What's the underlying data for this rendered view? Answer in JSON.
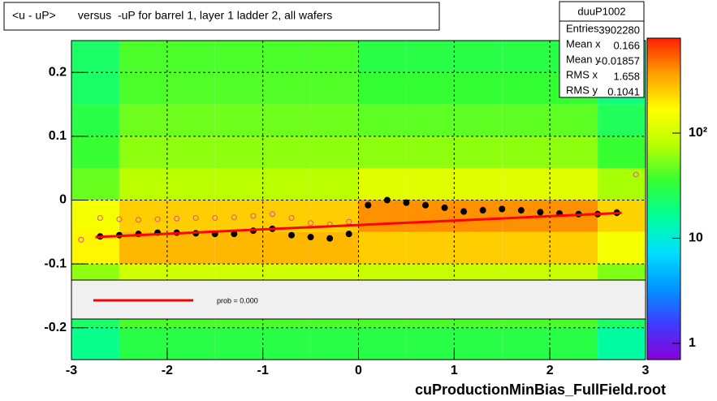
{
  "chart_data": {
    "type": "heatmap",
    "title": "<u - uP>       versus  -uP for barrel 1, layer 1 ladder 2, all wafers",
    "footer": "cuProductionMinBias_FullField.root",
    "xlim": [
      -3,
      3
    ],
    "xticks": [
      -3,
      -2,
      -1,
      0,
      1,
      2,
      3
    ],
    "ylim": [
      -0.25,
      0.25
    ],
    "yticks": [
      -0.2,
      -0.1,
      0,
      0.1,
      0.2
    ],
    "grid": true,
    "xbins": [
      -3,
      -2.5,
      -2,
      -1.5,
      -1,
      -0.5,
      0,
      0.5,
      1,
      1.5,
      2,
      2.5,
      3
    ],
    "ybins": [
      0.25,
      0.2,
      0.15,
      0.1,
      0.05,
      0,
      -0.05,
      -0.1,
      -0.15,
      -0.2,
      -0.25
    ],
    "z": [
      [
        24,
        40,
        40,
        40,
        40,
        40,
        30,
        30,
        30,
        30,
        30,
        18
      ],
      [
        24,
        40,
        42,
        42,
        42,
        42,
        35,
        35,
        35,
        35,
        35,
        20
      ],
      [
        30,
        50,
        50,
        50,
        50,
        50,
        45,
        45,
        45,
        45,
        45,
        26
      ],
      [
        36,
        60,
        60,
        60,
        60,
        60,
        60,
        60,
        60,
        60,
        60,
        36
      ],
      [
        48,
        80,
        80,
        80,
        80,
        80,
        120,
        120,
        120,
        120,
        120,
        70
      ],
      [
        150,
        250,
        250,
        250,
        250,
        250,
        400,
        400,
        400,
        400,
        400,
        240
      ],
      [
        180,
        300,
        300,
        300,
        300,
        300,
        250,
        250,
        250,
        250,
        250,
        150
      ],
      [
        60,
        100,
        100,
        100,
        100,
        100,
        90,
        90,
        90,
        90,
        90,
        55
      ],
      [
        24,
        40,
        40,
        40,
        40,
        40,
        40,
        40,
        40,
        40,
        40,
        24
      ],
      [
        18,
        30,
        30,
        30,
        30,
        30,
        30,
        30,
        30,
        30,
        30,
        15
      ]
    ],
    "zscale": "log",
    "zlim": [
      0.7,
      800
    ],
    "zticks": [
      1,
      10,
      {
        "value": 100,
        "label": "10²"
      }
    ],
    "palette": [
      "#8a00d8",
      "#3c3cff",
      "#0096ff",
      "#00e0ff",
      "#00ff9a",
      "#33ff33",
      "#b8ff00",
      "#ffff00",
      "#ffa000",
      "#ff2000"
    ],
    "series": [
      {
        "kind": "open",
        "color": "#e0508a",
        "x": [
          -2.9,
          -2.7,
          -2.5,
          -2.3,
          -2.1,
          -1.9,
          -1.7,
          -1.5,
          -1.3,
          -1.1,
          -0.9,
          -0.7,
          -0.5,
          -0.3,
          -0.1,
          0.1,
          0.3,
          0.5,
          0.7,
          0.9,
          1.1,
          1.3,
          1.5,
          1.7,
          1.9,
          2.1,
          2.3,
          2.5,
          2.7,
          2.9
        ],
        "values": [
          -0.062,
          -0.028,
          -0.03,
          -0.031,
          -0.03,
          -0.029,
          -0.028,
          -0.028,
          -0.027,
          -0.025,
          -0.022,
          -0.028,
          -0.036,
          -0.038,
          -0.034,
          -0.005,
          0.0,
          -0.005,
          -0.008,
          -0.012,
          -0.016,
          -0.014,
          -0.013,
          -0.015,
          -0.018,
          -0.02,
          -0.021,
          -0.021,
          -0.018,
          0.04
        ]
      },
      {
        "kind": "points",
        "color": "#000000",
        "x": [
          -2.7,
          -2.5,
          -2.3,
          -2.1,
          -1.9,
          -1.7,
          -1.5,
          -1.3,
          -1.1,
          -0.9,
          -0.7,
          -0.5,
          -0.3,
          -0.1,
          0.1,
          0.3,
          0.5,
          0.7,
          0.9,
          1.1,
          1.3,
          1.5,
          1.7,
          1.9,
          2.1,
          2.3,
          2.5,
          2.7
        ],
        "values": [
          -0.057,
          -0.055,
          -0.053,
          -0.051,
          -0.051,
          -0.052,
          -0.053,
          -0.053,
          -0.048,
          -0.045,
          -0.055,
          -0.058,
          -0.06,
          -0.053,
          -0.008,
          0.0,
          -0.004,
          -0.008,
          -0.012,
          -0.018,
          -0.016,
          -0.014,
          -0.016,
          -0.019,
          -0.021,
          -0.022,
          -0.022,
          -0.02
        ]
      },
      {
        "kind": "line",
        "color": "#ff0000",
        "x": [
          -2.75,
          2.75
        ],
        "values": [
          -0.058,
          -0.02
        ]
      }
    ],
    "legend": {
      "label": "prob = 0.000"
    },
    "stats": {
      "title": "duuP1002",
      "rows": [
        {
          "label": "Entries",
          "value": 3902280
        },
        {
          "label": "Mean x",
          "value": 0.166
        },
        {
          "label": "Mean y",
          "value": -0.01857
        },
        {
          "label": "RMS x",
          "value": 1.658
        },
        {
          "label": "RMS y",
          "value": 0.1041
        }
      ]
    }
  }
}
